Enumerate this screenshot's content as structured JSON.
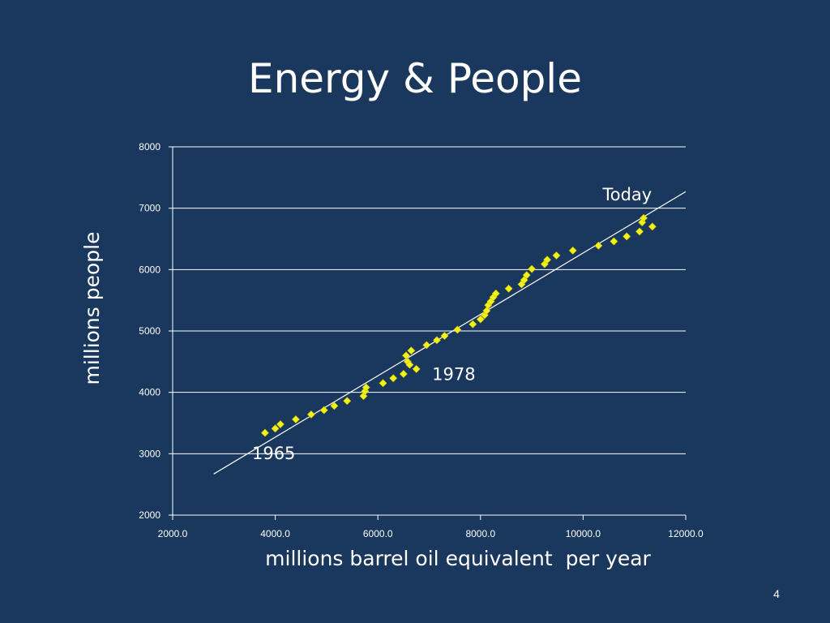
{
  "slide": {
    "title": "Energy & People",
    "page_number": "4",
    "colors": {
      "background": "#1a375e",
      "text": "#ffffff",
      "gridline": "#ffffff",
      "marker": "#f2f21a",
      "marker_stroke": "#c8c800",
      "trendline": "#ffffff"
    }
  },
  "chart_data": {
    "type": "scatter",
    "title": "",
    "xlabel": "millions barrel oil equivalent  per year",
    "ylabel": "millions people",
    "xlim": [
      2000,
      12000
    ],
    "ylim": [
      2000,
      8000
    ],
    "x_ticks": [
      2000,
      4000,
      6000,
      8000,
      10000,
      12000
    ],
    "x_tick_labels": [
      "2000.0",
      "4000.0",
      "6000.0",
      "8000.0",
      "10000.0",
      "12000.0"
    ],
    "y_ticks": [
      2000,
      3000,
      4000,
      5000,
      6000,
      7000,
      8000
    ],
    "y_tick_labels": [
      "2000",
      "3000",
      "4000",
      "5000",
      "6000",
      "7000",
      "8000"
    ],
    "grid": "horizontal",
    "marker": "diamond",
    "series": [
      {
        "name": "",
        "points": [
          [
            3800,
            3340
          ],
          [
            4000,
            3410
          ],
          [
            4100,
            3480
          ],
          [
            4400,
            3560
          ],
          [
            4700,
            3640
          ],
          [
            4950,
            3710
          ],
          [
            5150,
            3780
          ],
          [
            5400,
            3860
          ],
          [
            5720,
            3940
          ],
          [
            5750,
            4020
          ],
          [
            5770,
            4080
          ],
          [
            6100,
            4150
          ],
          [
            6300,
            4230
          ],
          [
            6500,
            4300
          ],
          [
            6550,
            4600
          ],
          [
            6580,
            4500
          ],
          [
            6620,
            4450
          ],
          [
            6650,
            4680
          ],
          [
            6750,
            4380
          ],
          [
            6950,
            4770
          ],
          [
            7150,
            4850
          ],
          [
            7300,
            4920
          ],
          [
            7550,
            5020
          ],
          [
            7850,
            5110
          ],
          [
            8000,
            5190
          ],
          [
            8080,
            5260
          ],
          [
            8120,
            5330
          ],
          [
            8150,
            5420
          ],
          [
            8200,
            5480
          ],
          [
            8250,
            5550
          ],
          [
            8300,
            5610
          ],
          [
            8550,
            5690
          ],
          [
            8800,
            5760
          ],
          [
            8850,
            5830
          ],
          [
            8900,
            5910
          ],
          [
            9000,
            6010
          ],
          [
            9250,
            6090
          ],
          [
            9300,
            6160
          ],
          [
            9480,
            6230
          ],
          [
            9800,
            6310
          ],
          [
            10300,
            6390
          ],
          [
            10600,
            6460
          ],
          [
            10850,
            6540
          ],
          [
            11100,
            6620
          ],
          [
            11150,
            6770
          ],
          [
            11180,
            6840
          ],
          [
            11350,
            6700
          ]
        ]
      }
    ],
    "trendline": {
      "x": [
        2800,
        12000
      ],
      "y": [
        2670,
        7270
      ]
    },
    "annotations": [
      {
        "text": "1965",
        "x": 3970,
        "y": 2910
      },
      {
        "text": "1978",
        "x": 7480,
        "y": 4200
      },
      {
        "text": "Today",
        "x": 10860,
        "y": 7130
      }
    ]
  }
}
